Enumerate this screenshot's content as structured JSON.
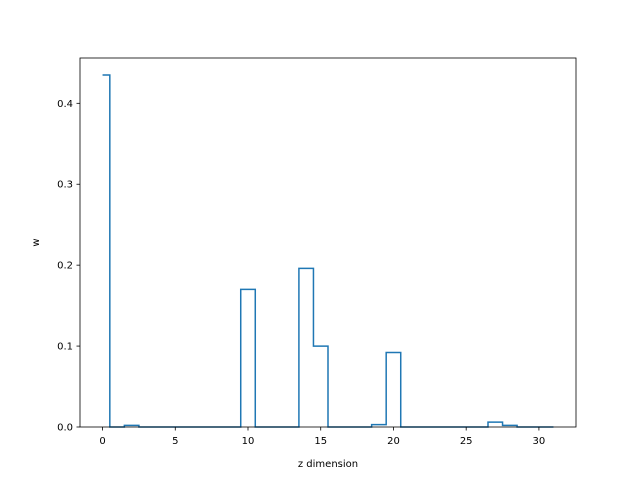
{
  "chart_data": {
    "type": "line",
    "drawstyle": "steps-mid",
    "xlabel": "z dimension",
    "ylabel": "w",
    "xlim": [
      -1.55,
      32.55
    ],
    "ylim": [
      0,
      0.456
    ],
    "xticks": [
      0,
      5,
      10,
      15,
      20,
      25,
      30
    ],
    "yticks": [
      0.0,
      0.1,
      0.2,
      0.3,
      0.4
    ],
    "xtick_labels": [
      "0",
      "5",
      "10",
      "15",
      "20",
      "25",
      "30"
    ],
    "ytick_labels": [
      "0.0",
      "0.1",
      "0.2",
      "0.3",
      "0.4"
    ],
    "line_color": "#1f77b4",
    "x": [
      0,
      1,
      2,
      3,
      4,
      5,
      6,
      7,
      8,
      9,
      10,
      11,
      12,
      13,
      14,
      15,
      16,
      17,
      18,
      19,
      20,
      21,
      22,
      23,
      24,
      25,
      26,
      27,
      28,
      29,
      30,
      31
    ],
    "y": [
      0.435,
      0.0,
      0.002,
      0.0,
      0.0,
      0.0,
      0.0,
      0.0,
      0.0,
      0.0,
      0.17,
      0.0,
      0.0,
      0.0,
      0.196,
      0.1,
      0.0,
      0.0,
      0.0,
      0.003,
      0.092,
      0.0,
      0.0,
      0.0,
      0.0,
      0.0,
      0.0,
      0.006,
      0.002,
      0.0,
      0.0,
      0.0
    ]
  }
}
